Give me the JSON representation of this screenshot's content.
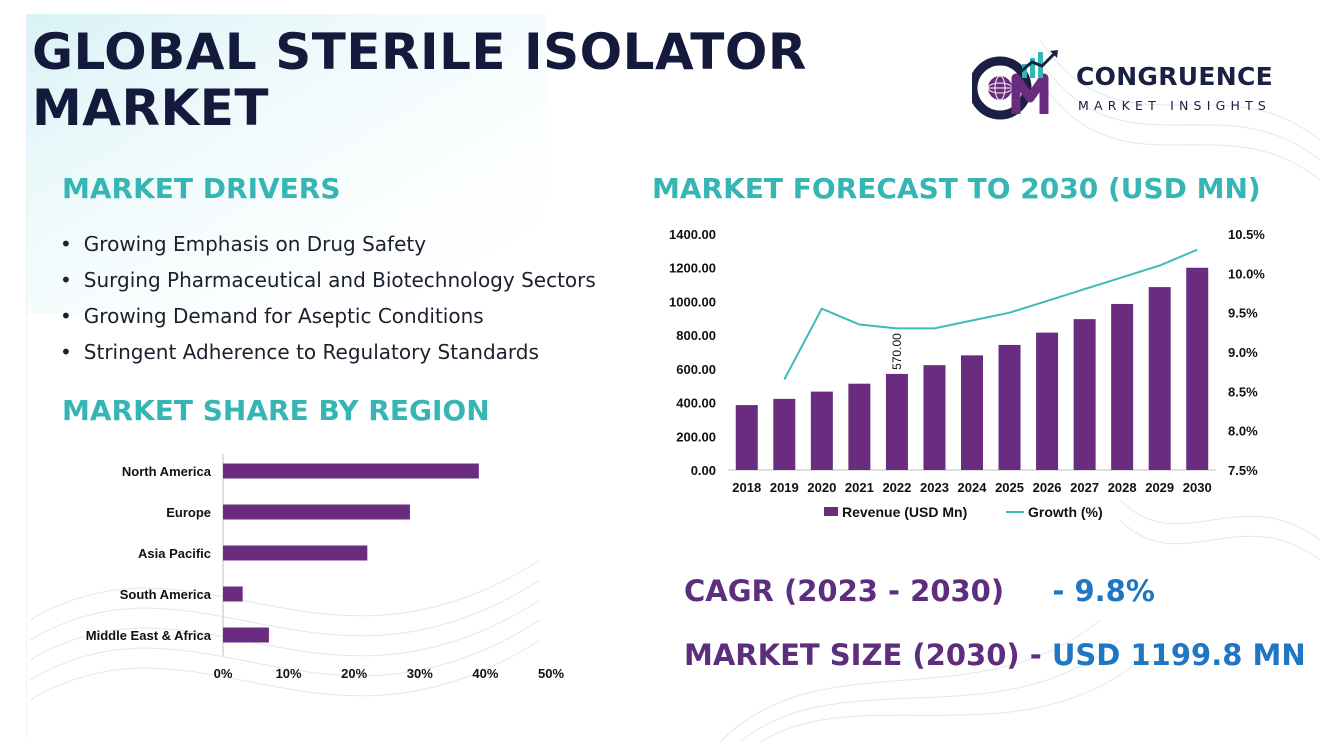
{
  "header": {
    "title_line1": "GLOBAL STERILE ISOLATOR",
    "title_line2": "MARKET"
  },
  "logo": {
    "name": "CONGRUENCE",
    "subtitle": "MARKET INSIGHTS"
  },
  "colors": {
    "section_title": "#35b5b3",
    "bar": "#6a2c7e",
    "line": "#3dbdb4",
    "title": "#141a3c",
    "stat_label": "#5c2e7d",
    "stat_value": "#1f76c2"
  },
  "drivers": {
    "title": "MARKET DRIVERS",
    "items": [
      "Growing Emphasis on Drug Safety",
      "Surging Pharmaceutical and Biotechnology Sectors",
      "Growing Demand for Aseptic Conditions",
      "Stringent Adherence to Regulatory Standards"
    ]
  },
  "region": {
    "title": "MARKET SHARE BY REGION"
  },
  "forecast": {
    "title": "MARKET FORECAST TO 2030 (USD MN)"
  },
  "stats": {
    "cagr_label": "CAGR (2023 - 2030)",
    "cagr_value": "- 9.8%",
    "size_label": "MARKET SIZE (2030) -",
    "size_value": "USD 1199.8 MN"
  },
  "chart_data": [
    {
      "type": "bar",
      "orientation": "horizontal",
      "categories": [
        "North America",
        "Europe",
        "Asia Pacific",
        "South America",
        "Middle East & Africa"
      ],
      "values": [
        39,
        28.5,
        22,
        3,
        7
      ],
      "x_ticks": [
        "0%",
        "10%",
        "20%",
        "30%",
        "40%",
        "50%"
      ],
      "xlim": [
        0,
        50
      ]
    },
    {
      "type": "bar+line",
      "categories": [
        "2018",
        "2019",
        "2020",
        "2021",
        "2022",
        "2023",
        "2024",
        "2025",
        "2026",
        "2027",
        "2028",
        "2029",
        "2030"
      ],
      "series": [
        {
          "name": "Revenue (USD Mn)",
          "type": "bar",
          "axis": "left",
          "values": [
            385,
            422,
            465,
            512,
            570,
            622,
            680,
            742,
            815,
            895,
            985,
            1085,
            1199.8
          ]
        },
        {
          "name": "Growth (%)",
          "type": "line",
          "axis": "right",
          "values": [
            null,
            8.65,
            9.55,
            9.35,
            9.3,
            9.3,
            9.4,
            9.5,
            9.65,
            9.8,
            9.95,
            10.1,
            10.3
          ]
        }
      ],
      "data_labels": [
        {
          "index": 4,
          "text": "570.00"
        }
      ],
      "left_ticks": [
        "0.00",
        "200.00",
        "400.00",
        "600.00",
        "800.00",
        "1000.00",
        "1200.00",
        "1400.00"
      ],
      "right_ticks": [
        "7.5%",
        "8.0%",
        "8.5%",
        "9.0%",
        "9.5%",
        "10.0%",
        "10.5%"
      ],
      "ylim_left": [
        0,
        1400
      ],
      "ylim_right": [
        7.5,
        10.5
      ]
    }
  ]
}
